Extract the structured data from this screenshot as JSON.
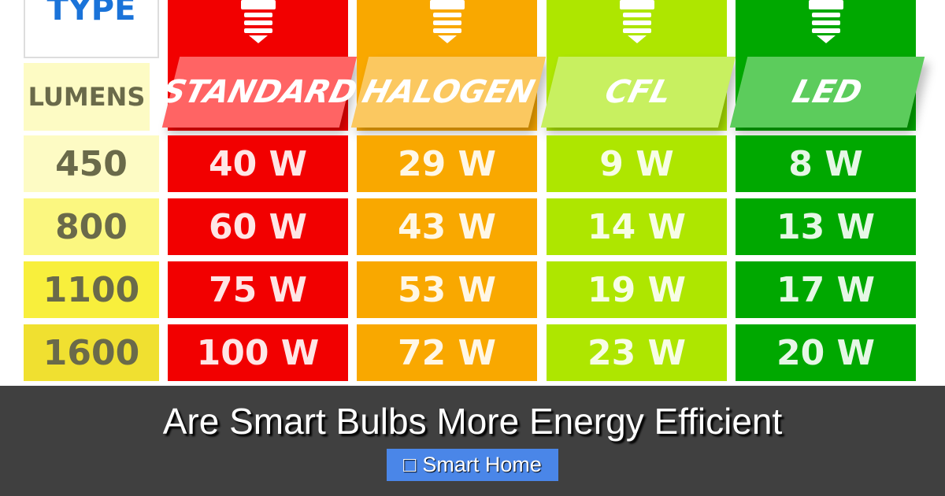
{
  "table": {
    "type_label": "TYPE",
    "lumens_label": "LUMENS",
    "lumens": [
      "450",
      "800",
      "1100",
      "1600"
    ],
    "columns": [
      {
        "name": "STANDARD",
        "color": "#f20000",
        "band": "#ff6464",
        "values": [
          "40 W",
          "60 W",
          "75 W",
          "100 W"
        ]
      },
      {
        "name": "HALOGEN",
        "color": "#f9a800",
        "band": "#fbc860",
        "values": [
          "29 W",
          "43 W",
          "53 W",
          "72 W"
        ]
      },
      {
        "name": "CFL",
        "color": "#aee600",
        "band": "#c8f060",
        "values": [
          "9 W",
          "14 W",
          "19 W",
          "23 W"
        ]
      },
      {
        "name": "LED",
        "color": "#00a800",
        "band": "#5ccc5c",
        "values": [
          "8 W",
          "13 W",
          "17 W",
          "20 W"
        ]
      }
    ],
    "lumens_colors": [
      "#fdfbc4",
      "#fbf780",
      "#f8ef3c",
      "#f0e030"
    ]
  },
  "post": {
    "title": "Are Smart Bulbs More Energy Efficient",
    "category_icon": "folder-icon",
    "category_glyph": "□",
    "category": "Smart Home",
    "badge_color": "#4a86e8"
  }
}
